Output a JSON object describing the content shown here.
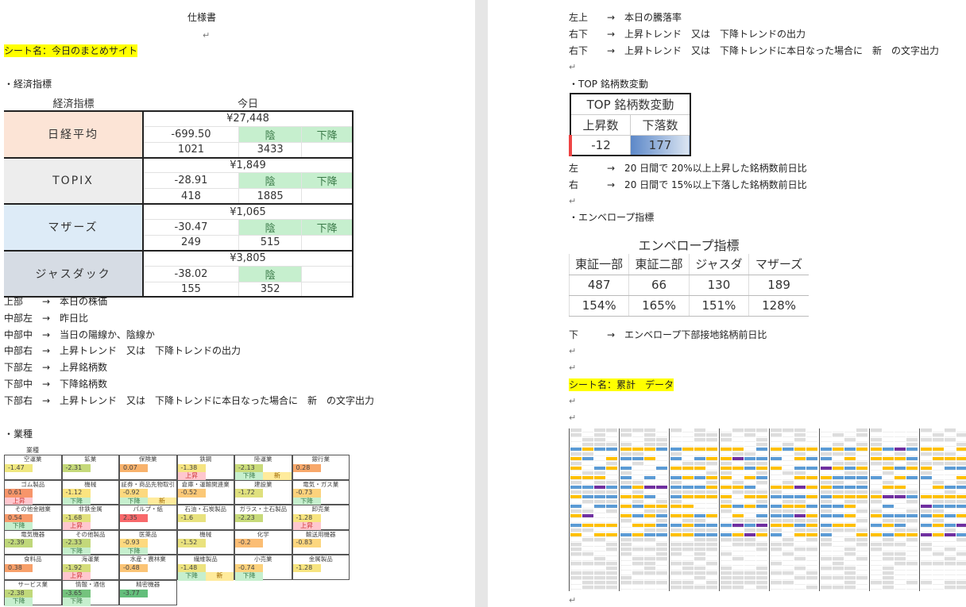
{
  "left": {
    "title": "仕様書",
    "sheet": "シート名：今日のまとめサイト",
    "eco_heading": "・経済指標",
    "eco": {
      "h1": "経済指標",
      "h2": "今日",
      "rows": [
        {
          "name": "日経平均",
          "price": "¥27,448",
          "diff": "-699.50",
          "candle": "陰",
          "trend": "下降",
          "up": "1021",
          "down": "3433",
          "bg": "#fce4d6"
        },
        {
          "name": "TOPIX",
          "price": "¥1,849",
          "diff": "-28.91",
          "candle": "陰",
          "trend": "下降",
          "up": "418",
          "down": "1885",
          "bg": "#ededed"
        },
        {
          "name": "マザーズ",
          "price": "¥1,065",
          "diff": "-30.47",
          "candle": "陰",
          "trend": "下降",
          "up": "249",
          "down": "515",
          "bg": "#ddebf7"
        },
        {
          "name": "ジャスダック",
          "price": "¥3,805",
          "diff": "-38.02",
          "candle": "陰",
          "trend": "",
          "up": "155",
          "down": "352",
          "bg": "#d6dce4"
        }
      ]
    },
    "notes": [
      "上部　　→　本日の株価",
      "中部左　→　昨日比",
      "中部中　→　当日の陽線か、陰線か",
      "中部右　→　上昇トレンド　又は　下降トレンドの出力",
      "下部左　→　上昇銘柄数",
      "下部中　→　下降銘柄数",
      "下部右　→　上昇トレンド　又は　下降トレンドに本日なった場合に　新　の文字出力"
    ],
    "sector_heading": "・業種",
    "sector_title": "業種",
    "sectors": [
      {
        "n": "空運業",
        "v": "-1.47",
        "c": "#efe77f",
        "a": "",
        "b": ""
      },
      {
        "n": "鉱業",
        "v": "-2.31",
        "c": "#c5d97a",
        "a": "",
        "b": ""
      },
      {
        "n": "保険業",
        "v": "0.07",
        "c": "#f8b26c",
        "a": "",
        "b": ""
      },
      {
        "n": "鉄鋼",
        "v": "-1.38",
        "c": "#f5e482",
        "a": "上昇",
        "b": ""
      },
      {
        "n": "陸運業",
        "v": "-2.13",
        "c": "#c9db7a",
        "a": "下降",
        "b": "新"
      },
      {
        "n": "銀行業",
        "v": "0.28",
        "c": "#f8a86a",
        "a": "",
        "b": ""
      },
      {
        "n": "ゴム製品",
        "v": "0.61",
        "c": "#f7956a",
        "a": "上昇",
        "b": ""
      },
      {
        "n": "機械",
        "v": "-1.12",
        "c": "#fbe47f",
        "a": "下降",
        "b": ""
      },
      {
        "n": "証券・商品先物取引",
        "v": "-0.92",
        "c": "#fcd97f",
        "a": "下降",
        "b": "新"
      },
      {
        "n": "倉庫・運輸関連業",
        "v": "-0.52",
        "c": "#fbc877",
        "a": "",
        "b": ""
      },
      {
        "n": "建設業",
        "v": "-1.72",
        "c": "#dfe07d",
        "a": "",
        "b": ""
      },
      {
        "n": "電気・ガス業",
        "v": "-0.73",
        "c": "#fcd27c",
        "a": "下降",
        "b": ""
      },
      {
        "n": "その他金融業",
        "v": "0.54",
        "c": "#f89a6a",
        "a": "下降",
        "b": ""
      },
      {
        "n": "非鉄金属",
        "v": "-1.68",
        "c": "#e2e17d",
        "a": "上昇",
        "b": ""
      },
      {
        "n": "パルプ・紙",
        "v": "2.35",
        "c": "#f8696b",
        "a": "",
        "b": ""
      },
      {
        "n": "石油・石炭製品",
        "v": "-1.6",
        "c": "#e8e27e",
        "a": "",
        "b": ""
      },
      {
        "n": "ガラス・土石製品",
        "v": "-2.23",
        "c": "#c7da7a",
        "a": "",
        "b": ""
      },
      {
        "n": "卸売業",
        "v": "-1.28",
        "c": "#f7e480",
        "a": "上昇",
        "b": ""
      },
      {
        "n": "電気機器",
        "v": "-2.39",
        "c": "#bfd77a",
        "a": "",
        "b": ""
      },
      {
        "n": "その他製品",
        "v": "-2.33",
        "c": "#c3d87a",
        "a": "下降",
        "b": ""
      },
      {
        "n": "医薬品",
        "v": "-0.93",
        "c": "#fdd97f",
        "a": "下降",
        "b": ""
      },
      {
        "n": "機械",
        "v": "-1.52",
        "c": "#eae27e",
        "a": "",
        "b": ""
      },
      {
        "n": "化学",
        "v": "-0.2",
        "c": "#fbbd74",
        "a": "",
        "b": ""
      },
      {
        "n": "輸送用機器",
        "v": "-0.83",
        "c": "#fcd67e",
        "a": "",
        "b": ""
      },
      {
        "n": "食料品",
        "v": "0.38",
        "c": "#f8a06a",
        "a": "",
        "b": ""
      },
      {
        "n": "海運業",
        "v": "-1.92",
        "c": "#d5dd7c",
        "a": "上昇",
        "b": ""
      },
      {
        "n": "水産・農林業",
        "v": "-0.48",
        "c": "#fbc476",
        "a": "",
        "b": ""
      },
      {
        "n": "繊維製品",
        "v": "-1.48",
        "c": "#ede37f",
        "a": "下降",
        "b": "新"
      },
      {
        "n": "小売業",
        "v": "-0.74",
        "c": "#fcd27c",
        "a": "下降",
        "b": ""
      },
      {
        "n": "金属製品",
        "v": "-1.28",
        "c": "#f7e480",
        "a": "",
        "b": ""
      },
      {
        "n": "サービス業",
        "v": "-2.38",
        "c": "#c0d87a",
        "a": "下降",
        "b": ""
      },
      {
        "n": "情報・通信",
        "v": "-3.65",
        "c": "#74c37d",
        "a": "下降",
        "b": ""
      },
      {
        "n": "精密機器",
        "v": "-3.77",
        "c": "#63be7b",
        "a": "",
        "b": ""
      }
    ]
  },
  "right": {
    "notes_top": [
      "左上　　→　本日の騰落率",
      "右下　　→　上昇トレンド　又は　下降トレンドの出力",
      "右下　　→　上昇トレンド　又は　下降トレンドに本日なった場合に　新　の文字出力"
    ],
    "top_heading": "・TOP 銘柄数変動",
    "top": {
      "title": "TOP 銘柄数変動",
      "up_label": "上昇数",
      "down_label": "下落数",
      "up": "-12",
      "down": "177"
    },
    "top_notes": [
      "左　　　→　20 日間で 20%以上上昇した銘柄数前日比",
      "右　　　→　20 日間で 15%以上下落した銘柄数前日比"
    ],
    "env_heading": "・エンベロープ指標",
    "env": {
      "title": "エンベロープ指標",
      "cols": [
        "東証一部",
        "東証二部",
        "ジャスダ",
        "マザーズ"
      ],
      "counts": [
        "487",
        "66",
        "130",
        "189"
      ],
      "pcts": [
        "154%",
        "165%",
        "151%",
        "128%"
      ]
    },
    "env_note": "下　　　→　エンベロープ下部接地銘柄前日比",
    "sheet2": "シート名：累計　データ"
  },
  "colors": {
    "highlight": "#ffff00",
    "down_green": "#c6efce",
    "up_pink": "#ffc7ce",
    "new_yellow": "#ffeb9c",
    "blue": "#5b9bd5",
    "orange": "#ffc000"
  }
}
